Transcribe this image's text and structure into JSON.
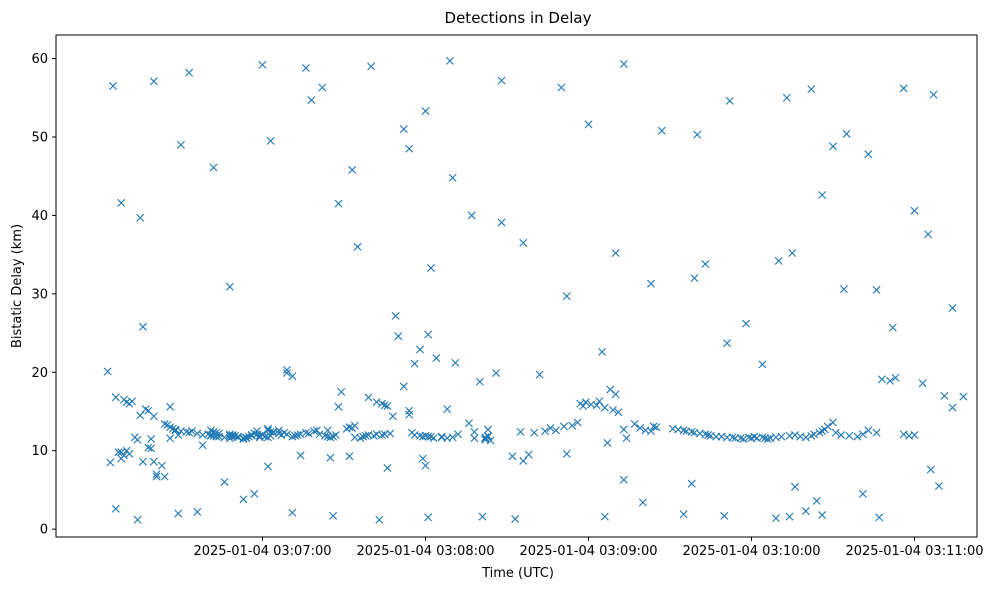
{
  "chart_data": {
    "type": "scatter",
    "title": "Detections in Delay",
    "xlabel": "Time (UTC)",
    "ylabel": "Bistatic Delay (km)",
    "x_unit": "seconds after 2025-01-04 03:06:00 UTC",
    "xlim": [
      -16,
      323
    ],
    "ylim": [
      -1,
      63
    ],
    "x_ticks": [
      {
        "value": 60,
        "label": "2025-01-04 03:07:00"
      },
      {
        "value": 120,
        "label": "2025-01-04 03:08:00"
      },
      {
        "value": 180,
        "label": "2025-01-04 03:09:00"
      },
      {
        "value": 240,
        "label": "2025-01-04 03:10:00"
      },
      {
        "value": 300,
        "label": "2025-01-04 03:11:00"
      }
    ],
    "y_ticks": [
      0,
      10,
      20,
      30,
      40,
      50,
      60
    ],
    "marker": "x",
    "series": [
      {
        "name": "Detections",
        "color": "#1f77b4",
        "x": [
          3,
          6,
          9,
          10,
          11,
          12,
          15,
          17,
          18,
          19,
          19,
          20,
          24,
          25,
          26,
          26,
          27,
          28,
          28,
          30,
          32,
          33,
          36,
          40,
          41,
          41,
          42,
          43,
          44,
          46,
          48,
          49,
          50,
          51,
          53,
          53,
          54,
          54,
          55,
          56,
          56,
          57,
          58,
          59,
          62,
          62,
          63,
          64,
          66,
          69,
          69,
          71,
          74,
          76,
          79,
          84,
          88,
          89,
          91,
          92,
          93,
          94,
          99,
          102,
          104,
          105,
          106,
          114,
          114,
          115,
          116,
          118,
          119,
          120,
          121,
          122,
          123,
          126,
          126,
          128,
          130,
          132,
          138,
          142,
          142,
          142,
          143,
          143,
          8,
          8,
          9,
          10,
          11,
          13,
          14,
          18,
          20,
          21,
          21,
          23,
          26,
          29,
          34,
          38,
          38,
          41,
          42,
          43,
          44,
          48,
          48,
          49,
          51,
          58,
          59,
          59,
          60,
          61,
          62,
          63,
          64,
          66,
          67,
          68,
          69,
          71,
          72,
          73,
          74,
          77,
          80,
          81,
          83,
          84,
          85,
          86,
          87,
          94,
          96,
          97,
          98,
          99,
          101,
          102,
          104,
          105,
          107,
          108,
          110,
          112,
          116,
          118,
          119,
          120,
          121,
          124,
          128,
          131,
          136,
          138,
          140,
          141,
          143,
          144,
          146,
          152,
          155,
          158,
          160,
          162,
          164,
          166,
          168,
          171,
          174,
          176,
          177,
          178,
          179,
          181,
          183,
          184,
          185,
          186,
          187,
          188,
          189,
          190,
          191,
          193,
          194,
          197,
          199,
          201,
          203,
          204,
          205,
          211,
          213,
          215,
          216,
          218,
          219,
          221,
          223,
          224,
          225,
          227,
          229,
          231,
          233,
          234,
          236,
          237,
          239,
          240,
          241,
          242,
          244,
          245,
          246,
          247,
          249,
          251,
          254,
          256,
          258,
          260,
          262,
          263,
          265,
          266,
          267,
          268,
          270,
          271,
          273,
          276,
          279,
          281,
          283,
          286,
          288,
          291,
          293,
          296,
          298,
          300,
          303,
          306,
          309,
          311,
          314,
          318,
          6,
          14,
          29,
          36,
          53,
          57,
          71,
          86,
          103,
          121,
          153,
          186,
          215,
          230,
          249,
          254,
          266,
          287,
          260,
          4,
          7,
          16,
          24,
          46,
          62,
          85,
          92,
          106,
          156,
          172,
          193,
          200,
          218,
          256,
          264,
          281,
          5,
          8,
          16,
          20,
          33,
          42,
          60,
          63,
          76,
          82,
          93,
          100,
          112,
          120,
          129,
          148,
          170,
          180,
          193,
          207,
          220,
          232,
          253,
          262,
          270,
          275,
          283,
          296,
          307,
          15,
          30,
          48,
          78,
          88,
          95,
          109,
          114,
          122,
          130,
          137,
          148,
          156,
          172,
          190,
          203,
          219,
          223,
          231,
          238,
          244,
          250,
          255,
          266,
          274,
          286,
          292,
          300,
          305,
          314
        ],
        "y": [
          20.1,
          16.8,
          16.5,
          16.2,
          16.0,
          16.3,
          14.5,
          15.3,
          15.1,
          10.3,
          11.5,
          14.4,
          13.4,
          13.3,
          15.6,
          13.0,
          12.8,
          12.7,
          12.6,
          12.5,
          12.4,
          12.3,
          12.2,
          12.1,
          12.0,
          11.9,
          11.9,
          11.8,
          11.8,
          11.7,
          11.6,
          11.8,
          11.9,
          11.7,
          11.6,
          11.5,
          11.6,
          11.7,
          11.8,
          11.9,
          12.0,
          12.2,
          12.5,
          11.9,
          12.8,
          12.6,
          12.4,
          12.3,
          12.6,
          20.3,
          19.9,
          19.5,
          9.4,
          12.3,
          12.5,
          12.6,
          15.6,
          17.5,
          12.8,
          13.0,
          12.9,
          13.2,
          16.8,
          16.2,
          16.0,
          15.8,
          15.7,
          15.1,
          14.6,
          12.3,
          12.0,
          11.9,
          11.8,
          11.9,
          11.8,
          11.8,
          11.6,
          11.7,
          11.8,
          11.6,
          11.7,
          12.1,
          11.6,
          11.4,
          11.7,
          11.6,
          11.8,
          11.9,
          9.0,
          9.8,
          9.4,
          10.0,
          9.6,
          11.7,
          11.4,
          10.4,
          8.6,
          6.7,
          7.0,
          8.1,
          11.6,
          12.0,
          12.5,
          12.0,
          10.7,
          12.6,
          12.4,
          12.3,
          12.2,
          12.1,
          11.9,
          12.0,
          11.8,
          12.1,
          11.9,
          11.7,
          12.0,
          11.8,
          11.7,
          11.9,
          12.4,
          12.2,
          12.0,
          12.3,
          12.1,
          11.8,
          11.9,
          12.0,
          12.1,
          12.2,
          12.6,
          12.1,
          11.9,
          11.8,
          11.7,
          11.8,
          12.0,
          11.7,
          11.6,
          11.8,
          11.9,
          12.0,
          11.9,
          12.1,
          12.0,
          12.1,
          12.2,
          14.4,
          24.6,
          18.2,
          21.1,
          22.9,
          9.0,
          8.1,
          24.8,
          21.8,
          15.3,
          21.2,
          13.5,
          12.4,
          18.8,
          1.6,
          12.7,
          11.3,
          19.9,
          9.3,
          12.4,
          9.5,
          12.3,
          19.7,
          12.5,
          12.9,
          12.6,
          13.1,
          13.2,
          13.6,
          16.0,
          15.7,
          16.2,
          15.9,
          15.8,
          16.3,
          22.6,
          15.5,
          11.0,
          17.8,
          15.2,
          17.2,
          14.9,
          12.7,
          11.6,
          13.4,
          12.9,
          12.6,
          12.5,
          13.1,
          13.0,
          12.8,
          12.7,
          12.6,
          12.5,
          12.4,
          12.3,
          12.2,
          12.1,
          12.0,
          11.9,
          11.8,
          11.8,
          11.7,
          11.7,
          11.6,
          11.6,
          11.5,
          11.7,
          11.6,
          11.8,
          11.6,
          11.7,
          11.6,
          11.5,
          11.6,
          11.7,
          11.8,
          11.9,
          12.0,
          11.8,
          11.7,
          11.9,
          12.1,
          12.3,
          12.5,
          12.7,
          13.1,
          13.6,
          12.3,
          12.0,
          11.9,
          11.8,
          12.1,
          12.6,
          12.3,
          19.1,
          18.9,
          19.3,
          12.1,
          11.9,
          12.0,
          18.6,
          7.6,
          5.5,
          17.0,
          15.5,
          16.9,
          2.6,
          1.2,
          2.0,
          2.2,
          3.8,
          4.5,
          2.1,
          1.7,
          1.2,
          1.5,
          1.3,
          1.6,
          1.9,
          1.7,
          1.4,
          1.6,
          1.8,
          1.5,
          2.3,
          8.5,
          9.8,
          8.6,
          6.7,
          6.0,
          8.0,
          9.1,
          9.3,
          7.8,
          8.7,
          9.6,
          6.3,
          3.4,
          5.8,
          5.4,
          3.6,
          4.5,
          56.5,
          41.6,
          25.8,
          57.1,
          58.2,
          46.1,
          59.2,
          49.5,
          58.8,
          56.3,
          45.8,
          59.0,
          51.0,
          53.3,
          59.7,
          57.2,
          56.3,
          51.6,
          59.3,
          50.8,
          50.3,
          54.6,
          55.0,
          56.1,
          48.8,
          50.4,
          47.8,
          56.2,
          55.4,
          39.7,
          49.0,
          30.9,
          54.7,
          41.5,
          36.0,
          27.2,
          48.5,
          33.3,
          44.8,
          40.0,
          39.1,
          36.5,
          29.7,
          35.2,
          31.3,
          32.0,
          33.8,
          23.7,
          26.2,
          21.0,
          34.2,
          35.2,
          42.6,
          30.6,
          30.5,
          25.7,
          40.6,
          37.6,
          28.2
        ]
      }
    ]
  }
}
